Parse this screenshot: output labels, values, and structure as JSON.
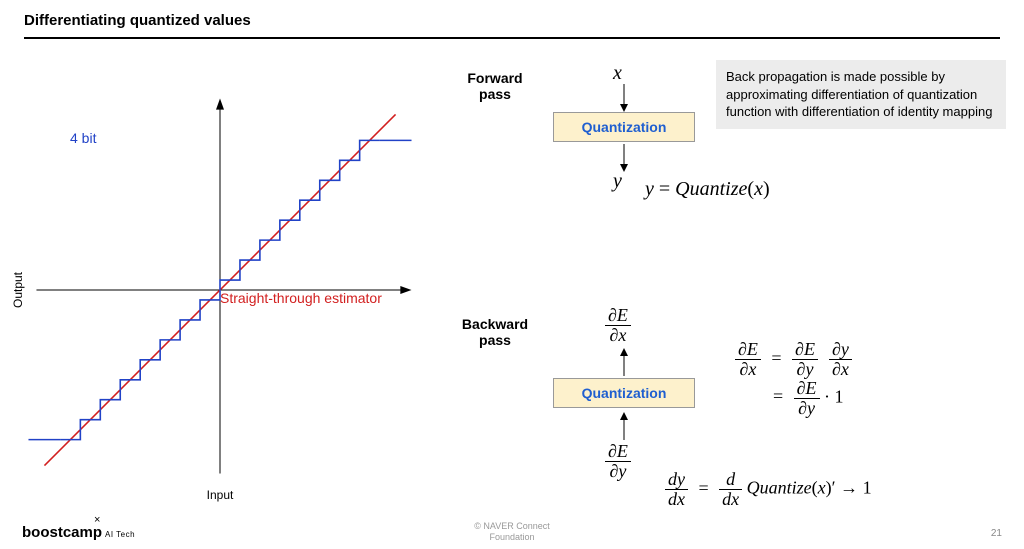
{
  "title": "Differentiating quantized values",
  "chart": {
    "type": "line+step",
    "x_label": "Input",
    "y_label": "Output",
    "bit_label": "4 bit",
    "bit_label_color": "#2142c7",
    "ste_label": "Straight-through estimator",
    "ste_label_color": "#d21f1f",
    "axis_color": "#000000",
    "ste_line_color": "#d21f1f",
    "step_line_color": "#2142c7",
    "xlim": [
      -1,
      1
    ],
    "ylim": [
      -1,
      1
    ],
    "n_steps": 16,
    "step_line": {
      "x": [
        -1.0,
        -0.875,
        -0.875,
        -0.75,
        -0.75,
        -0.625,
        -0.625,
        -0.5,
        -0.5,
        -0.375,
        -0.375,
        -0.25,
        -0.25,
        -0.125,
        -0.125,
        0,
        0,
        0.125,
        0.125,
        0.25,
        0.25,
        0.375,
        0.375,
        0.5,
        0.5,
        0.625,
        0.625,
        0.75,
        0.75,
        0.875,
        0.875,
        1.0
      ],
      "y": [
        -0.9375,
        -0.9375,
        -0.8125,
        -0.8125,
        -0.6875,
        -0.6875,
        -0.5625,
        -0.5625,
        -0.4375,
        -0.4375,
        -0.3125,
        -0.3125,
        -0.1875,
        -0.1875,
        -0.0625,
        -0.0625,
        0.0625,
        0.0625,
        0.1875,
        0.1875,
        0.3125,
        0.3125,
        0.4375,
        0.4375,
        0.5625,
        0.5625,
        0.6875,
        0.6875,
        0.8125,
        0.8125,
        0.9375,
        0.9375
      ]
    },
    "clip_left": {
      "x": [
        -1.2,
        -1.0
      ],
      "y": [
        -0.9375,
        -0.9375
      ]
    },
    "clip_right": {
      "x": [
        1.0,
        1.2
      ],
      "y": [
        0.9375,
        0.9375
      ]
    },
    "identity_line": {
      "x": [
        -1.1,
        1.1
      ],
      "y": [
        -1.1,
        1.1
      ]
    },
    "line_width": 1.6
  },
  "forward": {
    "label": "Forward\npass",
    "x_var": "x",
    "y_var": "y",
    "box_label": "Quantization",
    "equation": "y = Quantize(x)"
  },
  "backward": {
    "label": "Backward\npass",
    "top_var": {
      "num": "∂E",
      "den": "∂x"
    },
    "bot_var": {
      "num": "∂E",
      "den": "∂y"
    },
    "box_label": "Quantization",
    "chain_left": {
      "num": "∂E",
      "den": "∂x"
    },
    "chain_r1a": {
      "num": "∂E",
      "den": "∂y"
    },
    "chain_r1b": {
      "num": "∂y",
      "den": "∂x"
    },
    "chain_r2": {
      "num": "∂E",
      "den": "∂y"
    },
    "chain_r2_tail": " · 1",
    "deriv_left": {
      "num": "dy",
      "den": "dx"
    },
    "deriv_mid": {
      "num": "d",
      "den": "dx"
    },
    "deriv_tail": "Quantize(x)′ → 1"
  },
  "info_box": "Back propagation is made possible by approximating differentiation of quantization function with differentiation of identity mapping",
  "footer": {
    "x": "×",
    "brand_bold": "boostcamp",
    "brand_tail": "AI Tech",
    "center_l1": "© NAVER Connect",
    "center_l2": "Foundation",
    "page": "21"
  },
  "colors": {
    "box_bg": "#fdf1cc",
    "box_border": "#999999",
    "box_text": "#1f5fd0",
    "info_bg": "#ececec"
  }
}
